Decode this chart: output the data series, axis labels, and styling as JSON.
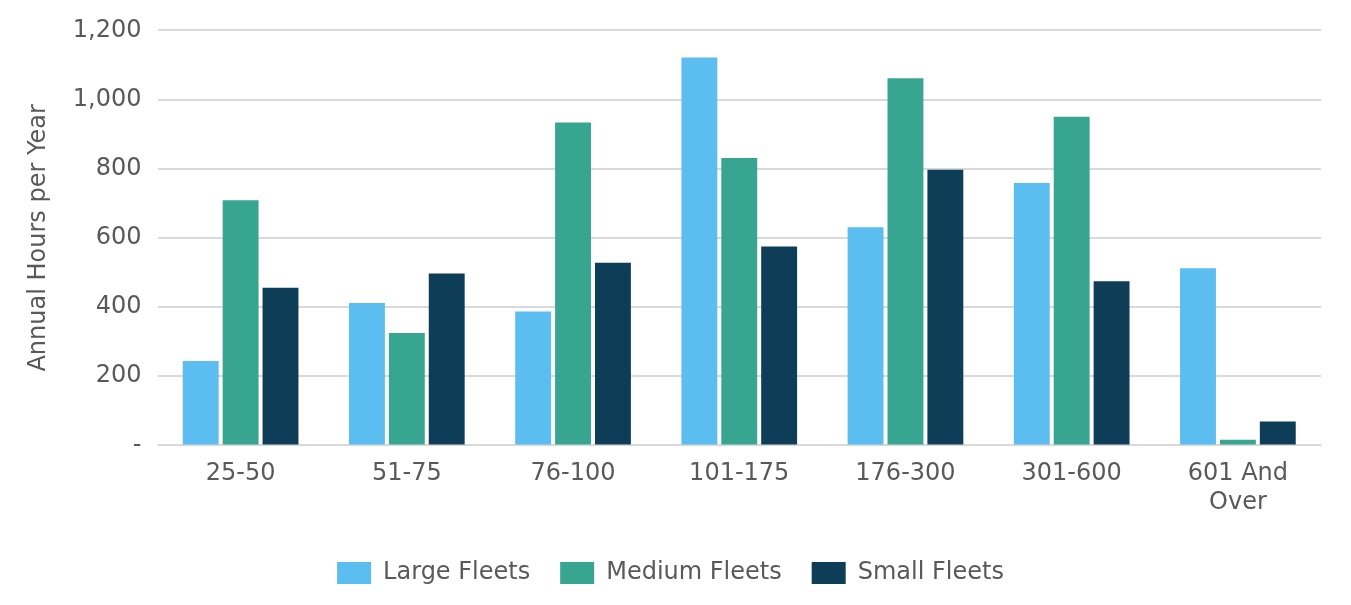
{
  "chart_data": {
    "type": "bar",
    "ylabel": "Annual Hours per Year",
    "categories": [
      "25-50",
      "51-75",
      "76-100",
      "101-175",
      "176-300",
      "301-600",
      "601 And Over"
    ],
    "series": [
      {
        "name": "Large Fleets",
        "color": "#5bbdf0",
        "values": [
          244,
          412,
          387,
          1122,
          631,
          759,
          512
        ]
      },
      {
        "name": "Medium Fleets",
        "color": "#38a590",
        "values": [
          709,
          325,
          934,
          831,
          1062,
          950,
          16
        ]
      },
      {
        "name": "Small Fleets",
        "color": "#0e3d58",
        "values": [
          456,
          497,
          528,
          575,
          797,
          475,
          69
        ]
      }
    ],
    "ylim": [
      0,
      1200
    ],
    "yticks": [
      {
        "value": 0,
        "label": "-"
      },
      200,
      400,
      600,
      800,
      {
        "value": 1000,
        "label": "1,000"
      },
      {
        "value": 1200,
        "label": "1,200"
      }
    ],
    "grid": "y",
    "legend": "bottom"
  }
}
